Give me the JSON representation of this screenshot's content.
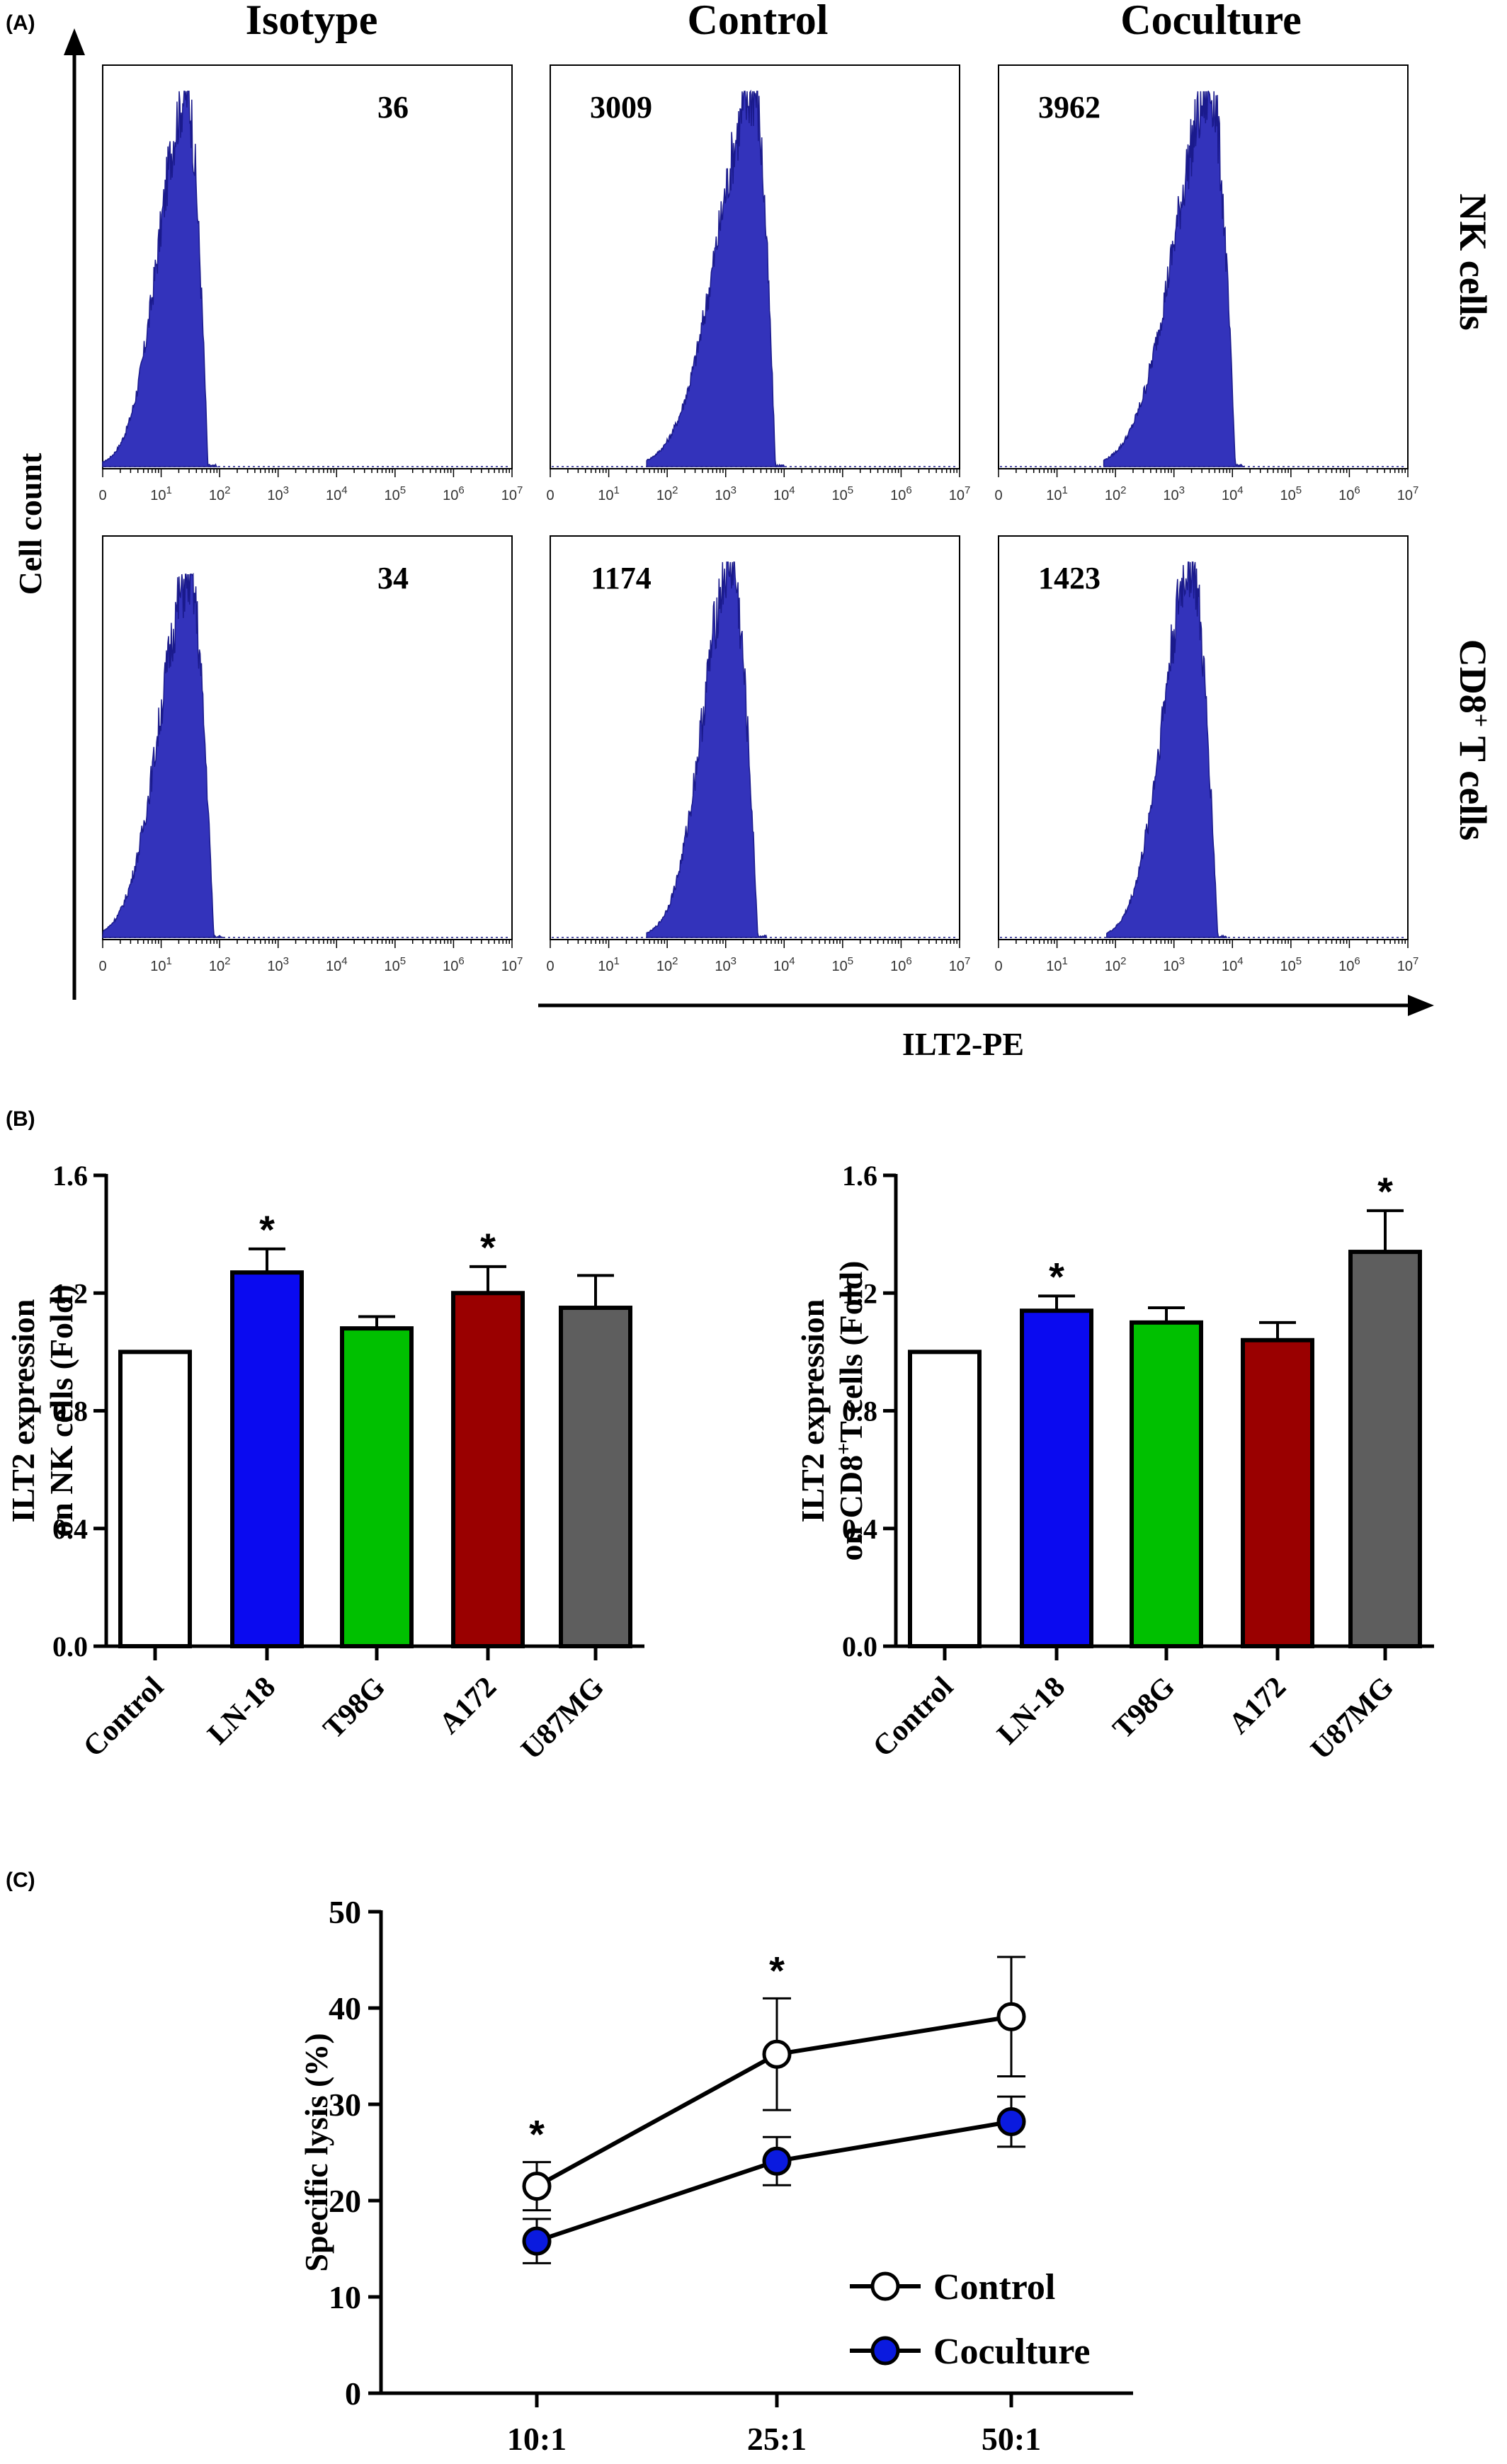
{
  "panels": {
    "A": {
      "label": "(A)",
      "column_titles": [
        "Isotype",
        "Control",
        "Coculture"
      ],
      "row_titles": [
        "NK cells",
        "CD8",
        "+",
        " T cells"
      ],
      "y_axis_label": "Cell count",
      "x_axis_label": "ILT2-PE",
      "tick_labels": [
        {
          "base": "0",
          "exp": ""
        },
        {
          "base": "10",
          "exp": "1"
        },
        {
          "base": "10",
          "exp": "2"
        },
        {
          "base": "10",
          "exp": "3"
        },
        {
          "base": "10",
          "exp": "4"
        },
        {
          "base": "10",
          "exp": "5"
        },
        {
          "base": "10",
          "exp": "6"
        },
        {
          "base": "10",
          "exp": "7"
        }
      ],
      "mfi": [
        [
          "36",
          "3009",
          "3962"
        ],
        [
          "34",
          "1174",
          "1423"
        ]
      ]
    },
    "B": {
      "label": "(B)"
    },
    "C": {
      "label": "(C)"
    }
  },
  "colors": {
    "histogram_fill": "#3333bb",
    "histogram_stroke": "#1a1a8c",
    "control": "#ffffff",
    "LN-18": "#0a0af0",
    "T98G": "#00c000",
    "A172": "#9a0000",
    "U87MG": "#5e5e5e",
    "coculture_marker": "#0a1adf"
  },
  "chart_data": [
    {
      "id": "A-histograms",
      "type": "area",
      "x_scale": "log",
      "x_ticks": [
        "0",
        "10^1",
        "10^2",
        "10^3",
        "10^4",
        "10^5",
        "10^6",
        "10^7"
      ],
      "xlabel": "ILT2-PE",
      "ylabel": "Cell count",
      "grid": false,
      "histograms": [
        {
          "row": "NK cells",
          "column": "Isotype",
          "mfi": "36",
          "peak_decade": 1.45,
          "left_spread": 1.2,
          "right_spread": 0.35,
          "height": 0.93
        },
        {
          "row": "NK cells",
          "column": "Control",
          "mfi": "3009",
          "peak_decade": 3.5,
          "left_spread": 1.6,
          "right_spread": 0.35,
          "height": 0.93
        },
        {
          "row": "NK cells",
          "column": "Coculture",
          "mfi": "3962",
          "peak_decade": 3.65,
          "left_spread": 1.6,
          "right_spread": 0.4,
          "height": 0.93
        },
        {
          "row": "CD8+ T cells",
          "column": "Isotype",
          "mfi": "34",
          "peak_decade": 1.5,
          "left_spread": 1.3,
          "right_spread": 0.4,
          "height": 0.9
        },
        {
          "row": "CD8+ T cells",
          "column": "Control",
          "mfi": "1174",
          "peak_decade": 3.1,
          "left_spread": 1.2,
          "right_spread": 0.45,
          "height": 0.93
        },
        {
          "row": "CD8+ T cells",
          "column": "Coculture",
          "mfi": "1423",
          "peak_decade": 3.3,
          "left_spread": 1.2,
          "right_spread": 0.45,
          "height": 0.93
        }
      ]
    },
    {
      "id": "B-left",
      "type": "bar",
      "categories": [
        "Control",
        "LN-18",
        "T98G",
        "A172",
        "U87MG"
      ],
      "values": [
        1.0,
        1.27,
        1.08,
        1.2,
        1.15
      ],
      "errors": [
        0.0,
        0.08,
        0.04,
        0.09,
        0.11
      ],
      "significance": [
        "",
        "*",
        "",
        "*",
        ""
      ],
      "ylabel_lines": [
        "ILT2 expression",
        "on NK cells (Fold)"
      ],
      "yticks": [
        "0.0",
        "0.4",
        "0.8",
        "1.2",
        "1.6"
      ],
      "ylim": [
        0,
        1.6
      ],
      "grid": false
    },
    {
      "id": "B-right",
      "type": "bar",
      "categories": [
        "Control",
        "LN-18",
        "T98G",
        "A172",
        "U87MG"
      ],
      "values": [
        1.0,
        1.14,
        1.1,
        1.04,
        1.34
      ],
      "errors": [
        0.0,
        0.05,
        0.05,
        0.06,
        0.14
      ],
      "significance": [
        "",
        "*",
        "",
        "",
        "*"
      ],
      "ylabel_lines": [
        "ILT2 expression",
        "on CD8",
        "+",
        "T cells (Fold)"
      ],
      "yticks": [
        "0.0",
        "0.4",
        "0.8",
        "1.2",
        "1.6"
      ],
      "ylim": [
        0,
        1.6
      ],
      "grid": false
    },
    {
      "id": "C",
      "type": "line",
      "categories": [
        "10:1",
        "25:1",
        "50:1"
      ],
      "series": [
        {
          "name": "Control",
          "values": [
            21.5,
            35.2,
            39.1
          ],
          "errors": [
            2.5,
            5.8,
            6.2
          ],
          "marker": "open-circle"
        },
        {
          "name": "Coculture",
          "values": [
            15.8,
            24.1,
            28.2
          ],
          "errors": [
            2.3,
            2.5,
            2.6
          ],
          "marker": "filled-circle"
        }
      ],
      "significance": [
        "*",
        "*",
        ""
      ],
      "ylabel": "Specific lysis (%)",
      "yticks": [
        "0",
        "10",
        "20",
        "30",
        "40",
        "50"
      ],
      "ylim": [
        0,
        50
      ],
      "legend_position": "bottom-right",
      "grid": false
    }
  ]
}
